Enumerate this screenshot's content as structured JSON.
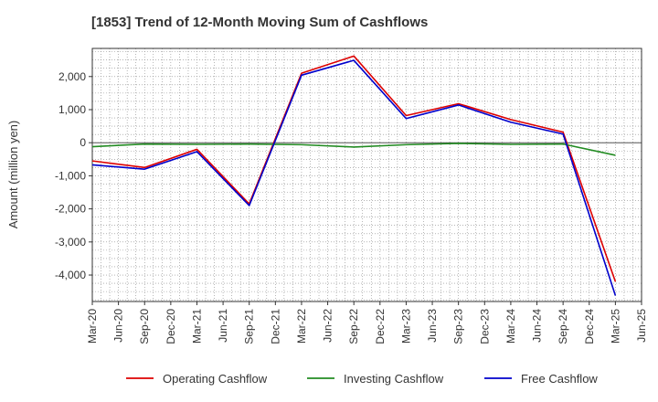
{
  "chart_data": {
    "type": "line",
    "title": "[1853]  Trend of 12-Month Moving Sum of Cashflows",
    "xlabel": "",
    "ylabel": "Amount (million yen)",
    "ylim": [
      -4800,
      2850
    ],
    "yticks": [
      2000,
      1000,
      0,
      -1000,
      -2000,
      -3000,
      -4000
    ],
    "ytick_labels": [
      "2,000",
      "1,000",
      "0",
      "-1,000",
      "-2,000",
      "-3,000",
      "-4,000"
    ],
    "x_ticks": [
      "Mar-20",
      "Jun-20",
      "Sep-20",
      "Dec-20",
      "Mar-21",
      "Jun-21",
      "Sep-21",
      "Dec-21",
      "Mar-22",
      "Jun-22",
      "Sep-22",
      "Dec-22",
      "Mar-23",
      "Jun-23",
      "Sep-23",
      "Dec-23",
      "Mar-24",
      "Jun-24",
      "Sep-24",
      "Dec-24",
      "Mar-25",
      "Jun-25"
    ],
    "x": [
      "Mar-20",
      "Sep-20",
      "Mar-21",
      "Sep-21",
      "Mar-22",
      "Sep-22",
      "Mar-23",
      "Sep-23",
      "Mar-24",
      "Sep-24",
      "Mar-25"
    ],
    "grid": true,
    "legend_position": "bottom",
    "series": [
      {
        "name": "Operating Cashflow",
        "color": "#dd0000",
        "values": [
          -550,
          -750,
          -200,
          -1850,
          2100,
          2620,
          820,
          1180,
          700,
          320,
          -4200
        ]
      },
      {
        "name": "Investing Cashflow",
        "color": "#228b22",
        "values": [
          -120,
          -40,
          -50,
          -40,
          -60,
          -130,
          -60,
          -20,
          -50,
          -40,
          -380
        ]
      },
      {
        "name": "Free Cashflow",
        "color": "#0000cc",
        "values": [
          -670,
          -800,
          -270,
          -1900,
          2040,
          2490,
          730,
          1140,
          620,
          260,
          -4620
        ]
      }
    ]
  }
}
